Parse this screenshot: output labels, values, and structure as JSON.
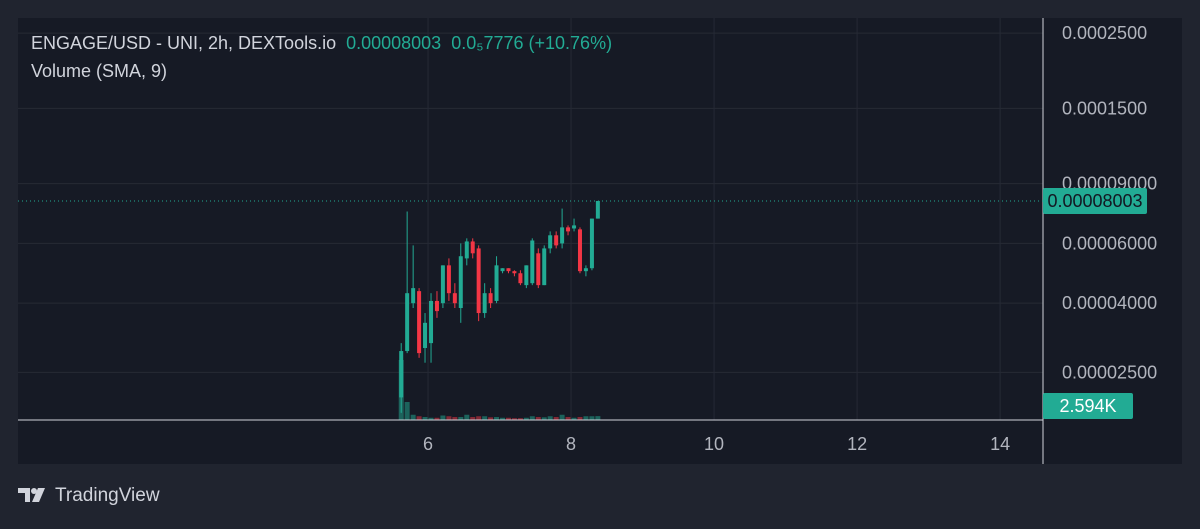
{
  "chart_data": {
    "type": "candlestick",
    "title": "ENGAGE/USD - UNI, 2h, DEXTools.io",
    "price_change_label": "0.0₅7776 (+10.76%)",
    "indicator": "Volume (SMA, 9)",
    "x": [
      5.625,
      5.708,
      5.792,
      5.875,
      5.958,
      6.042,
      6.125,
      6.208,
      6.292,
      6.375,
      6.458,
      6.542,
      6.625,
      6.708,
      6.792,
      6.875,
      6.958,
      7.042,
      7.125,
      7.208,
      7.292,
      7.375,
      7.458,
      7.542,
      7.625,
      7.708,
      7.792,
      7.875,
      7.958,
      8.042,
      8.125,
      8.208,
      8.292,
      8.375
    ],
    "open": [
      2.11e-05,
      2.89e-05,
      4e-05,
      4.34e-05,
      2.95e-05,
      3.05e-05,
      4.06e-05,
      4e-05,
      5.17e-05,
      4.28e-05,
      3.87e-05,
      5.42e-05,
      6.08e-05,
      5.8e-05,
      3.74e-05,
      4.28e-05,
      4.06e-05,
      4.97e-05,
      5.07e-05,
      4.97e-05,
      4.9e-05,
      4.52e-05,
      4.58e-05,
      5.61e-05,
      4.52e-05,
      5.8e-05,
      6.34e-05,
      6e-05,
      6.69e-05,
      6.64e-05,
      6.6e-05,
      4.97e-05,
      5.07e-05,
      7.1e-05
    ],
    "high": [
      3.05e-05,
      7.45e-05,
      5.92e-05,
      4.43e-05,
      3.74e-05,
      4.28e-05,
      4.34e-05,
      5.17e-05,
      5.42e-05,
      4.58e-05,
      6e-05,
      6.21e-05,
      6.21e-05,
      5.92e-05,
      4.58e-05,
      4.43e-05,
      5.5e-05,
      5.07e-05,
      5.07e-05,
      5e-05,
      5e-05,
      5.17e-05,
      6.21e-05,
      5.8e-05,
      5.92e-05,
      6.51e-05,
      6.51e-05,
      7.6e-05,
      6.78e-05,
      7.1e-05,
      6.69e-05,
      5.17e-05,
      7.1e-05,
      7.97e-05
    ],
    "low": [
      1.9e-05,
      2.85e-05,
      3.87e-05,
      2.76e-05,
      2.67e-05,
      2.67e-05,
      3.62e-05,
      3.87e-05,
      4.06e-05,
      3.87e-05,
      3.5e-05,
      5.17e-05,
      5.42e-05,
      3.54e-05,
      3.62e-05,
      3.87e-05,
      4e-05,
      4.9e-05,
      4.9e-05,
      4.8e-05,
      4.52e-05,
      4.43e-05,
      4.52e-05,
      4.43e-05,
      4.52e-05,
      5.61e-05,
      5.8e-05,
      5.8e-05,
      6.34e-05,
      6.51e-05,
      4.9e-05,
      4.8e-05,
      5e-05,
      7.1e-05
    ],
    "close": [
      2.89e-05,
      4.28e-05,
      4.43e-05,
      2.85e-05,
      3.5e-05,
      4.06e-05,
      3.79e-05,
      5.17e-05,
      4.28e-05,
      4e-05,
      5.5e-05,
      6.08e-05,
      5.61e-05,
      3.74e-05,
      4.28e-05,
      4e-05,
      5.17e-05,
      5.07e-05,
      4.97e-05,
      4.9e-05,
      4.58e-05,
      5.17e-05,
      6.12e-05,
      4.52e-05,
      5.8e-05,
      6.34e-05,
      5.92e-05,
      6.69e-05,
      6.51e-05,
      6.78e-05,
      4.97e-05,
      5.07e-05,
      7.1e-05,
      8.003e-05
    ],
    "volume": {
      "values": [
        40000,
        12000,
        3500,
        2500,
        2000,
        1500,
        1500,
        3000,
        2500,
        2000,
        2000,
        3500,
        2000,
        2500,
        2500,
        1800,
        2000,
        1500,
        1500,
        1200,
        1200,
        1500,
        2500,
        2000,
        1800,
        2500,
        2000,
        3500,
        2000,
        1500,
        2000,
        2500,
        2500,
        2594
      ],
      "last_label": "2.594K"
    },
    "up_color": "#22ab94",
    "down_color": "#f23645",
    "log_scale": true,
    "grid": true,
    "xlim": [
      0.266,
      14.6
    ],
    "xticks": [
      6,
      8,
      10,
      12,
      14
    ],
    "ylim": [
      1.81e-05,
      0.000277
    ],
    "yticks": [
      {
        "value": 0.00025,
        "label": "0.0002500"
      },
      {
        "value": 0.00015,
        "label": "0.0001500"
      },
      {
        "value": 9e-05,
        "label": "0.00009000"
      },
      {
        "value": 6e-05,
        "label": "0.00006000"
      },
      {
        "value": 4e-05,
        "label": "0.00004000"
      },
      {
        "value": 2.5e-05,
        "label": "0.00002500"
      }
    ]
  },
  "footer": {
    "brand": "TradingView"
  }
}
